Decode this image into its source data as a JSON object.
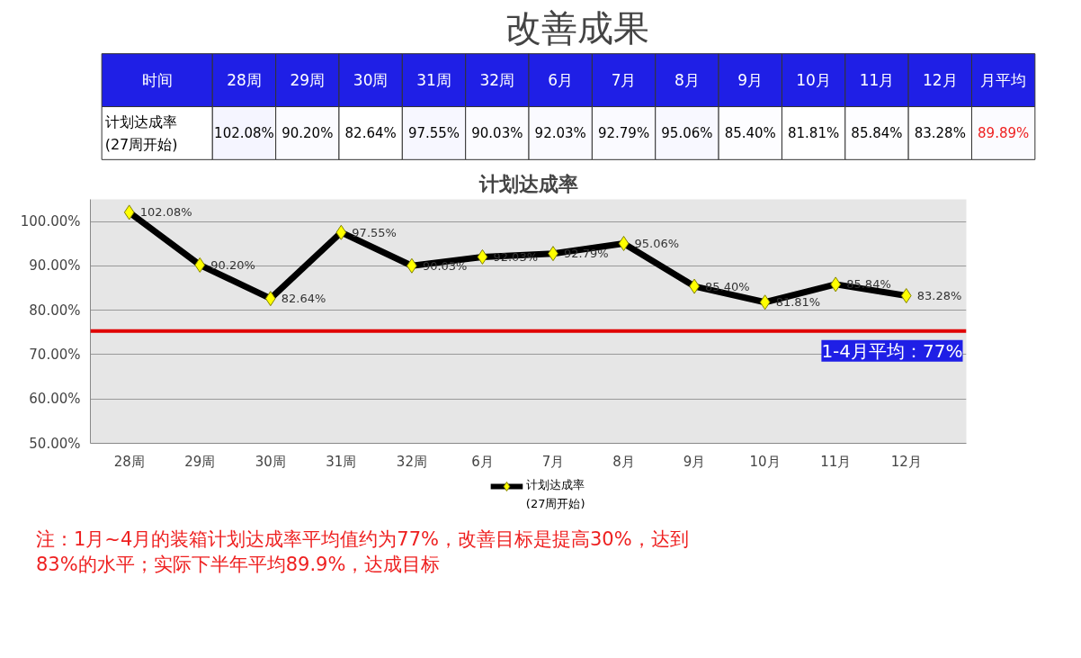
{
  "chart_data": [
    {
      "type": "heatmap",
      "title": "改善成果",
      "annotations": [
        "时间"
      ],
      "categories": [
        "28周",
        "29周",
        "30周",
        "31周",
        "32周",
        "6月",
        "7月",
        "8月",
        "9月",
        "10月",
        "11月",
        "12月",
        "月平均"
      ],
      "y_categories": [
        "计划达成率\n(27周开始)"
      ],
      "cells": [
        [
          102.08,
          90.2,
          82.64,
          97.55,
          90.03,
          92.03,
          92.79,
          95.06,
          85.4,
          81.81,
          85.84,
          83.28,
          89.89
        ]
      ],
      "cell_labels": [
        [
          "102.08%",
          "90.20%",
          "82.64%",
          "97.55%",
          "90.03%",
          "92.03%",
          "92.79%",
          "95.06%",
          "85.40%",
          "81.81%",
          "85.84%",
          "83.28%",
          "89.89%"
        ]
      ]
    },
    {
      "type": "line",
      "title": "计划达成率",
      "categories": [
        "28周",
        "29周",
        "30周",
        "31周",
        "32周",
        "6月",
        "7月",
        "8月",
        "9月",
        "10月",
        "11月",
        "12月"
      ],
      "series": [
        {
          "name": "计划达成率\n(27周开始)",
          "color": "#000000",
          "values": [
            102.08,
            90.2,
            82.64,
            97.55,
            90.03,
            92.03,
            92.79,
            95.06,
            85.4,
            81.81,
            85.84,
            83.28
          ],
          "value_labels": [
            "102.08%",
            "90.20%",
            "82.64%",
            "97.55%",
            "90.03%",
            "92.03%",
            "92.79%",
            "95.06%",
            "85.40%",
            "81.81%",
            "85.84%",
            "83.28%"
          ]
        }
      ],
      "ylim": [
        50,
        105
      ],
      "yticks": [
        {
          "value": 50,
          "label": "50.00%"
        },
        {
          "value": 60,
          "label": "60.00%"
        },
        {
          "value": 70,
          "label": "70.00%"
        },
        {
          "value": 80,
          "label": "80.00%"
        },
        {
          "value": 90,
          "label": "90.00%"
        },
        {
          "value": 100,
          "label": "100.00%"
        }
      ],
      "grid": "y",
      "marker": "diamond",
      "line_style": "solid",
      "legend": "bottom",
      "ref_lines": [
        {
          "axis": "y",
          "value": 75.3,
          "label": "1-4月平均：77%",
          "color": "#e00000"
        }
      ],
      "annotations": [
        "注：1月~4月的装箱计划达成率平均值约为77%，改善目标是提高30%，达到\n83%的水平；实际下半年平均89.9%，达成目标"
      ]
    }
  ]
}
